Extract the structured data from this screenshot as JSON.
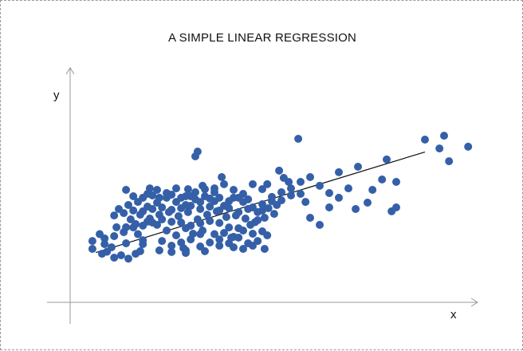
{
  "chart_data": {
    "type": "scatter",
    "title": "A SIMPLE LINEAR REGRESSION",
    "xlabel": "x",
    "ylabel": "y",
    "colors": {
      "points": "#3560a8",
      "line": "#111111",
      "axes": "#999999"
    },
    "grid": false,
    "xlim": [
      0,
      100
    ],
    "ylim": [
      0,
      100
    ],
    "regression_line": {
      "x": [
        4.0,
        90.0
      ],
      "y": [
        14.8,
        91.2
      ]
    },
    "points": [
      [
        6.9,
        15.4
      ],
      [
        6.3,
        21.2
      ],
      [
        11.9,
        21.8
      ],
      [
        14.4,
        13.9
      ],
      [
        12.5,
        10.2
      ],
      [
        15.0,
        28.8
      ],
      [
        8.1,
        18.8
      ],
      [
        5.0,
        28.8
      ],
      [
        9.4,
        34.0
      ],
      [
        11.9,
        34.0
      ],
      [
        14.4,
        36.4
      ],
      [
        17.5,
        38.3
      ],
      [
        20.0,
        35.8
      ],
      [
        22.5,
        31.5
      ],
      [
        25.0,
        27.9
      ],
      [
        27.5,
        33.3
      ],
      [
        29.4,
        29.1
      ],
      [
        31.9,
        31.5
      ],
      [
        35.0,
        28.8
      ],
      [
        37.5,
        29.7
      ],
      [
        40.0,
        26.7
      ],
      [
        42.5,
        31.5
      ],
      [
        45.0,
        29.1
      ],
      [
        47.5,
        30.9
      ],
      [
        13.1,
        40.0
      ],
      [
        15.6,
        43.6
      ],
      [
        18.1,
        40.6
      ],
      [
        20.6,
        43.6
      ],
      [
        23.1,
        45.5
      ],
      [
        25.6,
        42.4
      ],
      [
        28.1,
        45.5
      ],
      [
        30.6,
        40.0
      ],
      [
        33.1,
        43.6
      ],
      [
        35.6,
        46.1
      ],
      [
        38.1,
        41.8
      ],
      [
        40.6,
        43.0
      ],
      [
        43.1,
        40.6
      ],
      [
        45.6,
        37.9
      ],
      [
        48.1,
        41.2
      ],
      [
        50.6,
        44.2
      ],
      [
        10.0,
        47.9
      ],
      [
        12.5,
        50.9
      ],
      [
        15.0,
        53.3
      ],
      [
        17.5,
        49.7
      ],
      [
        20.0,
        52.7
      ],
      [
        22.5,
        56.4
      ],
      [
        25.0,
        53.3
      ],
      [
        27.5,
        50.9
      ],
      [
        30.0,
        55.2
      ],
      [
        32.5,
        57.6
      ],
      [
        35.0,
        53.9
      ],
      [
        37.5,
        50.3
      ],
      [
        40.0,
        56.4
      ],
      [
        42.5,
        53.3
      ],
      [
        45.0,
        49.1
      ],
      [
        47.5,
        51.5
      ],
      [
        50.0,
        57.0
      ],
      [
        17.5,
        59.4
      ],
      [
        20.0,
        62.4
      ],
      [
        22.5,
        60.0
      ],
      [
        25.0,
        63.6
      ],
      [
        27.5,
        57.6
      ],
      [
        30.0,
        60.6
      ],
      [
        32.5,
        63.0
      ],
      [
        35.0,
        60.6
      ],
      [
        37.5,
        66.7
      ],
      [
        40.0,
        62.4
      ],
      [
        42.5,
        59.4
      ],
      [
        45.0,
        66.7
      ],
      [
        47.5,
        63.0
      ],
      [
        52.5,
        60.6
      ],
      [
        55.0,
        63.6
      ],
      [
        57.5,
        68.5
      ],
      [
        60.0,
        72.1
      ],
      [
        62.5,
        65.5
      ],
      [
        65.0,
        60.0
      ],
      [
        67.5,
        75.8
      ],
      [
        70.0,
        63.6
      ],
      [
        72.5,
        80.0
      ],
      [
        78.8,
        70.3
      ],
      [
        80.0,
        85.5
      ],
      [
        90.0,
        100.6
      ],
      [
        93.8,
        93.9
      ],
      [
        95.0,
        103.6
      ],
      [
        96.3,
        84.2
      ],
      [
        82.5,
        68.5
      ],
      [
        81.3,
        46.1
      ],
      [
        57.5,
        59.4
      ],
      [
        58.8,
        53.3
      ],
      [
        60.0,
        41.2
      ],
      [
        62.5,
        35.8
      ],
      [
        65.0,
        49.1
      ],
      [
        67.5,
        56.4
      ],
      [
        71.9,
        47.9
      ],
      [
        76.3,
        62.4
      ],
      [
        75.0,
        52.7
      ],
      [
        82.5,
        49.1
      ],
      [
        101.3,
        95.2
      ],
      [
        51.9,
        77.0
      ],
      [
        56.9,
        101.2
      ],
      [
        30.6,
        91.5
      ],
      [
        30.0,
        87.9
      ],
      [
        36.9,
        72.1
      ],
      [
        53.1,
        71.5
      ],
      [
        54.4,
        68.5
      ],
      [
        48.8,
        66.7
      ],
      [
        50.0,
        53.9
      ],
      [
        47.5,
        46.7
      ],
      [
        46.3,
        39.4
      ],
      [
        44.4,
        35.8
      ],
      [
        41.3,
        33.3
      ],
      [
        38.8,
        33.9
      ],
      [
        36.3,
        37.3
      ],
      [
        33.8,
        38.8
      ],
      [
        31.3,
        37.0
      ],
      [
        28.8,
        35.2
      ],
      [
        26.3,
        37.6
      ],
      [
        23.8,
        38.2
      ],
      [
        21.3,
        40.0
      ],
      [
        18.8,
        37.6
      ],
      [
        16.3,
        35.2
      ],
      [
        13.8,
        33.9
      ],
      [
        11.3,
        30.3
      ],
      [
        8.8,
        27.3
      ],
      [
        6.3,
        25.5
      ],
      [
        16.3,
        24.2
      ],
      [
        21.3,
        23.6
      ],
      [
        23.8,
        20.0
      ],
      [
        26.3,
        22.4
      ],
      [
        28.8,
        24.8
      ],
      [
        31.3,
        19.4
      ],
      [
        33.8,
        22.4
      ],
      [
        36.3,
        24.8
      ],
      [
        38.8,
        21.8
      ],
      [
        41.3,
        26.1
      ],
      [
        43.8,
        21.8
      ],
      [
        46.3,
        23.6
      ],
      [
        48.8,
        27.9
      ],
      [
        8.8,
        43.0
      ],
      [
        11.3,
        44.8
      ],
      [
        13.8,
        46.7
      ],
      [
        16.3,
        46.1
      ],
      [
        18.8,
        47.9
      ],
      [
        21.3,
        49.1
      ],
      [
        23.8,
        47.3
      ],
      [
        26.3,
        48.5
      ],
      [
        28.8,
        50.3
      ],
      [
        31.3,
        47.9
      ],
      [
        33.8,
        49.7
      ],
      [
        36.3,
        46.7
      ],
      [
        38.8,
        48.5
      ],
      [
        41.3,
        45.5
      ],
      [
        43.8,
        47.9
      ],
      [
        46.3,
        45.5
      ],
      [
        49.1,
        48.5
      ],
      [
        51.3,
        50.9
      ],
      [
        13.8,
        57.6
      ],
      [
        16.3,
        56.4
      ],
      [
        18.8,
        58.2
      ],
      [
        23.8,
        58.8
      ],
      [
        26.3,
        56.4
      ],
      [
        28.8,
        57.6
      ],
      [
        31.3,
        53.3
      ],
      [
        33.8,
        55.8
      ],
      [
        36.3,
        56.4
      ],
      [
        38.8,
        53.9
      ],
      [
        41.3,
        56.4
      ],
      [
        43.8,
        55.2
      ],
      [
        52.5,
        54.5
      ],
      [
        55.0,
        58.2
      ],
      [
        11.9,
        62.4
      ],
      [
        18.1,
        63.6
      ],
      [
        20.6,
        56.4
      ],
      [
        28.1,
        63.0
      ],
      [
        31.9,
        65.5
      ],
      [
        35.0,
        63.6
      ],
      [
        26.9,
        18.2
      ],
      [
        27.5,
        14.5
      ],
      [
        27.5,
        16.4
      ],
      [
        32.5,
        15.8
      ],
      [
        36.3,
        20.0
      ],
      [
        40.0,
        18.8
      ],
      [
        42.5,
        17.6
      ],
      [
        45.0,
        20.0
      ],
      [
        48.1,
        17.6
      ],
      [
        10.6,
        12.7
      ],
      [
        15.6,
        15.8
      ],
      [
        16.3,
        21.2
      ],
      [
        20.6,
        16.4
      ],
      [
        23.8,
        15.2
      ],
      [
        3.1,
        17.6
      ],
      [
        3.1,
        23.6
      ],
      [
        5.6,
        13.9
      ],
      [
        8.8,
        10.9
      ],
      [
        39.4,
        26.1
      ],
      [
        31.3,
        28.8
      ]
    ]
  }
}
